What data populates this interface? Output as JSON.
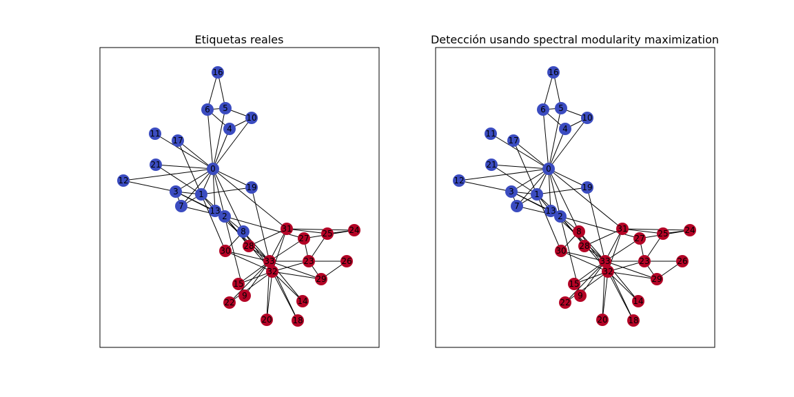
{
  "figure": {
    "colors": {
      "blue": "#3b4cc0",
      "red": "#b40426",
      "edge": "#000000"
    },
    "panels": [
      {
        "id": "left",
        "title": "Etiquetas reales"
      },
      {
        "id": "right",
        "title": "Detección usando spectral modularity maximization"
      }
    ]
  },
  "graph": {
    "nodes": [
      {
        "id": 0,
        "label": "0"
      },
      {
        "id": 1,
        "label": "1"
      },
      {
        "id": 2,
        "label": "2"
      },
      {
        "id": 3,
        "label": "3"
      },
      {
        "id": 4,
        "label": "4"
      },
      {
        "id": 5,
        "label": "5"
      },
      {
        "id": 6,
        "label": "6"
      },
      {
        "id": 7,
        "label": "7"
      },
      {
        "id": 8,
        "label": "8"
      },
      {
        "id": 9,
        "label": "9"
      },
      {
        "id": 10,
        "label": "10"
      },
      {
        "id": 11,
        "label": "11"
      },
      {
        "id": 12,
        "label": "12"
      },
      {
        "id": 13,
        "label": "13"
      },
      {
        "id": 14,
        "label": "14"
      },
      {
        "id": 15,
        "label": "15"
      },
      {
        "id": 16,
        "label": "16"
      },
      {
        "id": 17,
        "label": "17"
      },
      {
        "id": 18,
        "label": "18"
      },
      {
        "id": 19,
        "label": "19"
      },
      {
        "id": 20,
        "label": "20"
      },
      {
        "id": 21,
        "label": "21"
      },
      {
        "id": 22,
        "label": "22"
      },
      {
        "id": 23,
        "label": "23"
      },
      {
        "id": 24,
        "label": "24"
      },
      {
        "id": 25,
        "label": "25"
      },
      {
        "id": 26,
        "label": "26"
      },
      {
        "id": 27,
        "label": "27"
      },
      {
        "id": 28,
        "label": "28"
      },
      {
        "id": 29,
        "label": "29"
      },
      {
        "id": 30,
        "label": "30"
      },
      {
        "id": 31,
        "label": "31"
      },
      {
        "id": 32,
        "label": "32"
      },
      {
        "id": 33,
        "label": "33"
      }
    ],
    "edges": [
      [
        0,
        1
      ],
      [
        0,
        2
      ],
      [
        0,
        3
      ],
      [
        0,
        4
      ],
      [
        0,
        5
      ],
      [
        0,
        6
      ],
      [
        0,
        7
      ],
      [
        0,
        8
      ],
      [
        0,
        10
      ],
      [
        0,
        11
      ],
      [
        0,
        12
      ],
      [
        0,
        13
      ],
      [
        0,
        17
      ],
      [
        0,
        19
      ],
      [
        0,
        21
      ],
      [
        0,
        31
      ],
      [
        1,
        2
      ],
      [
        1,
        3
      ],
      [
        1,
        7
      ],
      [
        1,
        13
      ],
      [
        1,
        17
      ],
      [
        1,
        19
      ],
      [
        1,
        21
      ],
      [
        1,
        30
      ],
      [
        2,
        3
      ],
      [
        2,
        7
      ],
      [
        2,
        8
      ],
      [
        2,
        9
      ],
      [
        2,
        13
      ],
      [
        2,
        27
      ],
      [
        2,
        28
      ],
      [
        2,
        32
      ],
      [
        3,
        7
      ],
      [
        3,
        12
      ],
      [
        3,
        13
      ],
      [
        4,
        6
      ],
      [
        4,
        10
      ],
      [
        5,
        6
      ],
      [
        5,
        10
      ],
      [
        5,
        16
      ],
      [
        6,
        16
      ],
      [
        8,
        30
      ],
      [
        8,
        32
      ],
      [
        8,
        33
      ],
      [
        9,
        33
      ],
      [
        13,
        33
      ],
      [
        14,
        32
      ],
      [
        14,
        33
      ],
      [
        15,
        32
      ],
      [
        15,
        33
      ],
      [
        18,
        32
      ],
      [
        18,
        33
      ],
      [
        19,
        33
      ],
      [
        20,
        32
      ],
      [
        20,
        33
      ],
      [
        22,
        32
      ],
      [
        22,
        33
      ],
      [
        23,
        25
      ],
      [
        23,
        27
      ],
      [
        23,
        29
      ],
      [
        23,
        32
      ],
      [
        23,
        33
      ],
      [
        24,
        25
      ],
      [
        24,
        27
      ],
      [
        24,
        31
      ],
      [
        25,
        31
      ],
      [
        26,
        29
      ],
      [
        26,
        33
      ],
      [
        27,
        33
      ],
      [
        28,
        31
      ],
      [
        28,
        33
      ],
      [
        29,
        32
      ],
      [
        29,
        33
      ],
      [
        30,
        32
      ],
      [
        30,
        33
      ],
      [
        31,
        32
      ],
      [
        31,
        33
      ],
      [
        32,
        33
      ]
    ],
    "communities": {
      "left": {
        "blue": [
          0,
          1,
          2,
          3,
          4,
          5,
          6,
          7,
          8,
          10,
          11,
          12,
          13,
          16,
          17,
          19,
          21
        ],
        "red": [
          9,
          14,
          15,
          18,
          20,
          22,
          23,
          24,
          25,
          26,
          27,
          28,
          29,
          30,
          31,
          32,
          33
        ]
      },
      "right": {
        "blue": [
          0,
          1,
          2,
          3,
          4,
          5,
          6,
          7,
          10,
          11,
          12,
          13,
          16,
          17,
          19,
          21
        ],
        "red": [
          8,
          9,
          14,
          15,
          18,
          20,
          22,
          23,
          24,
          25,
          26,
          27,
          28,
          29,
          30,
          31,
          32,
          33
        ]
      }
    }
  }
}
